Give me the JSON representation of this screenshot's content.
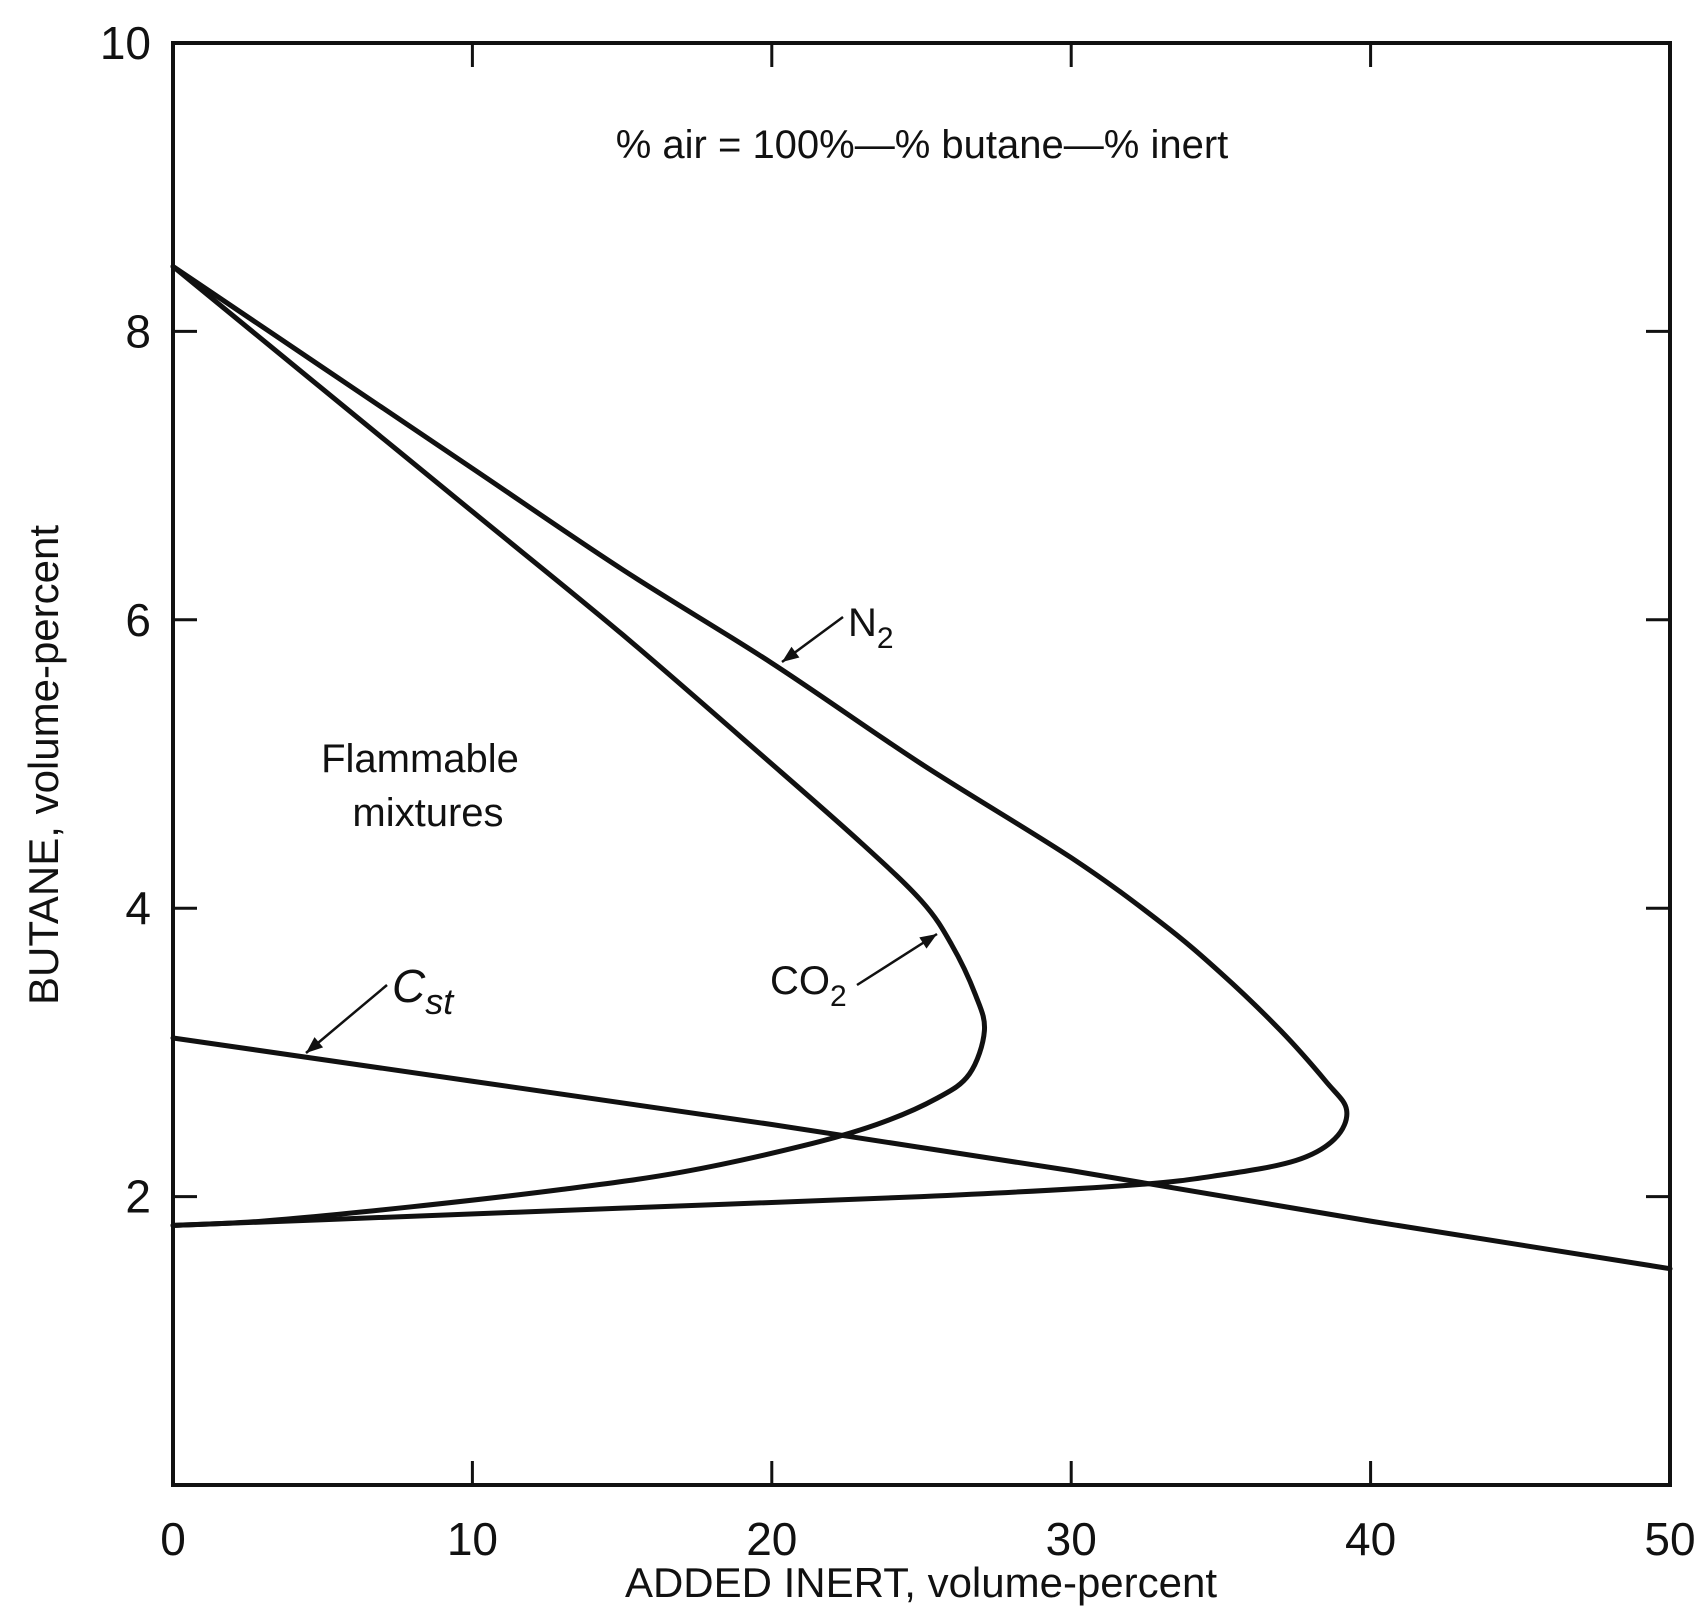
{
  "chart_data": {
    "type": "line",
    "title": "",
    "xlabel": "ADDED INERT, volume-percent",
    "ylabel": "BUTANE, volume-percent",
    "xlim": [
      0,
      50
    ],
    "ylim": [
      0,
      10
    ],
    "x_ticks": [
      0,
      10,
      20,
      30,
      40,
      50
    ],
    "y_ticks": [
      2,
      4,
      6,
      8,
      10
    ],
    "x_tick_labels": [
      "0",
      "10",
      "20",
      "30",
      "40",
      "50"
    ],
    "y_tick_labels": [
      "2",
      "4",
      "6",
      "8",
      "10"
    ],
    "grid": false,
    "series": [
      {
        "name": "N2",
        "label_text": "N",
        "label_sub": "2",
        "points": [
          [
            0,
            8.45
          ],
          [
            5,
            7.75
          ],
          [
            10,
            7.05
          ],
          [
            15,
            6.35
          ],
          [
            20,
            5.7
          ],
          [
            25,
            5.0
          ],
          [
            30,
            4.35
          ],
          [
            33,
            3.9
          ],
          [
            35,
            3.55
          ],
          [
            37,
            3.15
          ],
          [
            38.5,
            2.8
          ],
          [
            39.2,
            2.6
          ],
          [
            38.8,
            2.4
          ],
          [
            37.5,
            2.25
          ],
          [
            35,
            2.15
          ],
          [
            32,
            2.08
          ],
          [
            25,
            2.0
          ],
          [
            15,
            1.92
          ],
          [
            5,
            1.84
          ],
          [
            0,
            1.8
          ]
        ]
      },
      {
        "name": "CO2",
        "label_text": "CO",
        "label_sub": "2",
        "points": [
          [
            0,
            8.45
          ],
          [
            5,
            7.6
          ],
          [
            10,
            6.75
          ],
          [
            15,
            5.9
          ],
          [
            20,
            5.0
          ],
          [
            23,
            4.45
          ],
          [
            25,
            4.05
          ],
          [
            26,
            3.75
          ],
          [
            26.8,
            3.4
          ],
          [
            27.1,
            3.15
          ],
          [
            26.6,
            2.85
          ],
          [
            25.5,
            2.68
          ],
          [
            23.5,
            2.5
          ],
          [
            21,
            2.35
          ],
          [
            17,
            2.17
          ],
          [
            13,
            2.05
          ],
          [
            8,
            1.93
          ],
          [
            3,
            1.83
          ],
          [
            0,
            1.8
          ]
        ]
      },
      {
        "name": "Cst",
        "label_text": "C",
        "label_sub": "st",
        "points": [
          [
            0,
            3.1
          ],
          [
            10,
            2.8
          ],
          [
            20,
            2.5
          ],
          [
            30,
            2.18
          ],
          [
            40,
            1.83
          ],
          [
            50,
            1.5
          ]
        ]
      }
    ],
    "annotations": {
      "formula": "% air = 100%—% butane—% inert",
      "region_line1": "Flammable",
      "region_line2": "mixtures"
    }
  }
}
